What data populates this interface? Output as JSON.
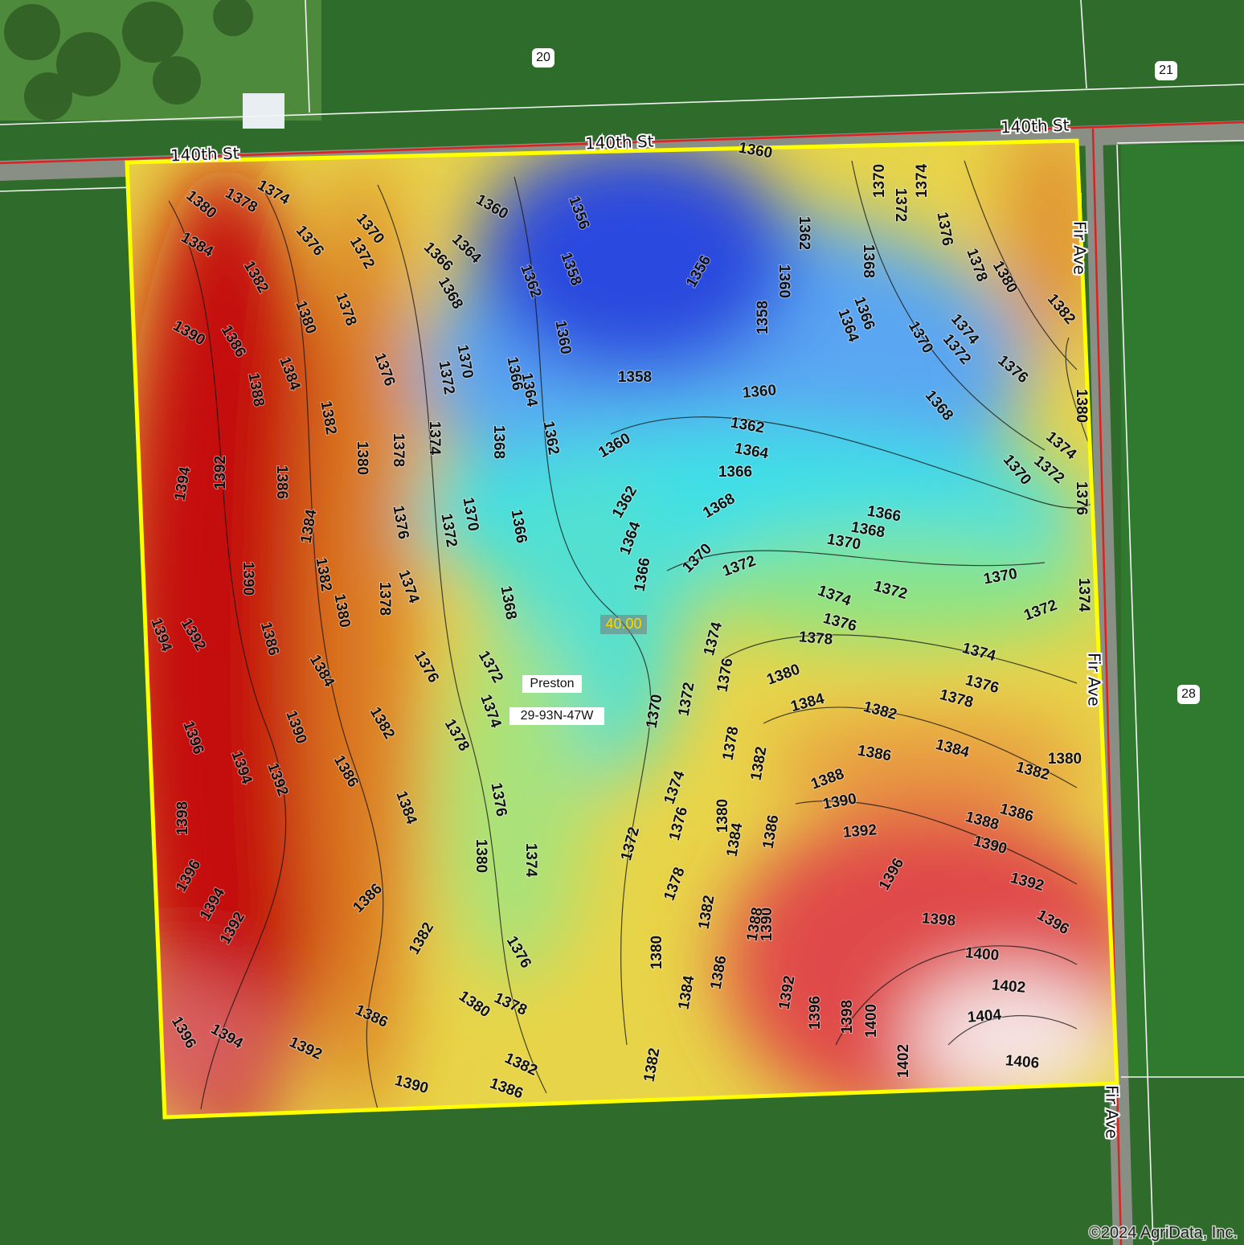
{
  "roads": {
    "north": "140th St",
    "east": "Fir Ave"
  },
  "sections": [
    "20",
    "21",
    "28"
  ],
  "field": {
    "acres": "40.00",
    "township": "Preston",
    "legal": "29-93N-47W"
  },
  "contour_labels": [
    1360,
    1356,
    1360,
    1364,
    1366,
    1370,
    1372,
    1374,
    1378,
    1380,
    1384,
    1382,
    1376,
    1380,
    1378,
    1390,
    1386,
    1388,
    1384,
    1382,
    1380,
    1378,
    1376,
    1374,
    1372,
    1370,
    1368,
    1362,
    1358,
    1360,
    1366,
    1364,
    1362,
    1368,
    1358,
    1360,
    1360,
    1362,
    1364,
    1366,
    1368,
    1370,
    1372,
    1356,
    1358,
    1360,
    1362,
    1368,
    1366,
    1364,
    1370,
    1372,
    1374,
    1376,
    1378,
    1380,
    1382,
    1374,
    1372,
    1370,
    1376,
    1368,
    1380,
    1374,
    1372,
    1376,
    1370,
    1366,
    1368,
    1370,
    1370,
    1372,
    1374,
    1372,
    1374,
    1376,
    1378,
    1374,
    1376,
    1378,
    1380,
    1384,
    1382,
    1384,
    1386,
    1382,
    1380,
    1388,
    1390,
    1392,
    1386,
    1388,
    1390,
    1392,
    1396,
    1396,
    1398,
    1400,
    1402,
    1404,
    1406,
    1402,
    1400,
    1398,
    1396,
    1392,
    1390,
    1388,
    1386,
    1386,
    1384,
    1380,
    1382,
    1378,
    1376,
    1374,
    1372,
    1370,
    1374,
    1376,
    1378,
    1372,
    1382,
    1380,
    1384,
    1382,
    1386,
    1382,
    1380,
    1378,
    1376,
    1374,
    1376,
    1380,
    1382,
    1386,
    1386,
    1390,
    1392,
    1394,
    1396,
    1392,
    1394,
    1396,
    1398,
    1396,
    1394,
    1392,
    1390,
    1386,
    1384,
    1382,
    1384,
    1386,
    1390,
    1392,
    1394,
    1394,
    1392,
    1386,
    1384,
    1382,
    1380,
    1378,
    1374,
    1376,
    1372,
    1370,
    1366,
    1368,
    1372,
    1374,
    1378,
    1376,
    1362,
    1364,
    1366
  ],
  "copyright": "©2024 AgriData, Inc."
}
